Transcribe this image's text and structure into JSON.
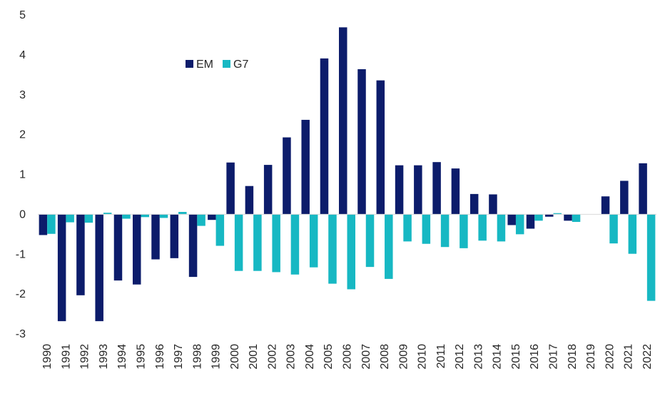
{
  "chart_data": {
    "type": "bar",
    "title": "",
    "xlabel": "",
    "ylabel": "",
    "ylim": [
      -3,
      5
    ],
    "yticks": [
      "5",
      "4",
      "3",
      "2",
      "1",
      "0",
      "-1",
      "-2",
      "-3"
    ],
    "categories": [
      "1990",
      "1991",
      "1992",
      "1993",
      "1994",
      "1995",
      "1996",
      "1997",
      "1998",
      "1999",
      "2000",
      "2001",
      "2002",
      "2003",
      "2004",
      "2005",
      "2006",
      "2007",
      "2008",
      "2009",
      "2010",
      "2011",
      "2012",
      "2013",
      "2014",
      "2015",
      "2016",
      "2017",
      "2018",
      "2019",
      "2020",
      "2021",
      "2022"
    ],
    "series": [
      {
        "name": "EM",
        "color": "#0c1c6b",
        "values": [
          -0.52,
          -2.68,
          -2.03,
          -2.68,
          -1.66,
          -1.76,
          -1.13,
          -1.1,
          -1.57,
          -0.14,
          1.3,
          0.71,
          1.24,
          1.93,
          2.37,
          3.91,
          4.69,
          3.64,
          3.36,
          1.23,
          1.23,
          1.31,
          1.15,
          0.51,
          0.5,
          -0.27,
          -0.36,
          -0.06,
          -0.16,
          0.0,
          0.45,
          0.84,
          1.28
        ]
      },
      {
        "name": "G7",
        "color": "#17b8c3",
        "values": [
          -0.49,
          -0.2,
          -0.21,
          0.04,
          -0.11,
          -0.07,
          -0.09,
          0.06,
          -0.29,
          -0.79,
          -1.42,
          -1.42,
          -1.45,
          -1.51,
          -1.33,
          -1.74,
          -1.88,
          -1.32,
          -1.62,
          -0.68,
          -0.74,
          -0.82,
          -0.85,
          -0.66,
          -0.68,
          -0.5,
          -0.16,
          0.03,
          -0.19,
          0.0,
          -0.73,
          -0.99,
          -2.17
        ]
      }
    ],
    "legend": {
      "placement": "top-left"
    }
  }
}
